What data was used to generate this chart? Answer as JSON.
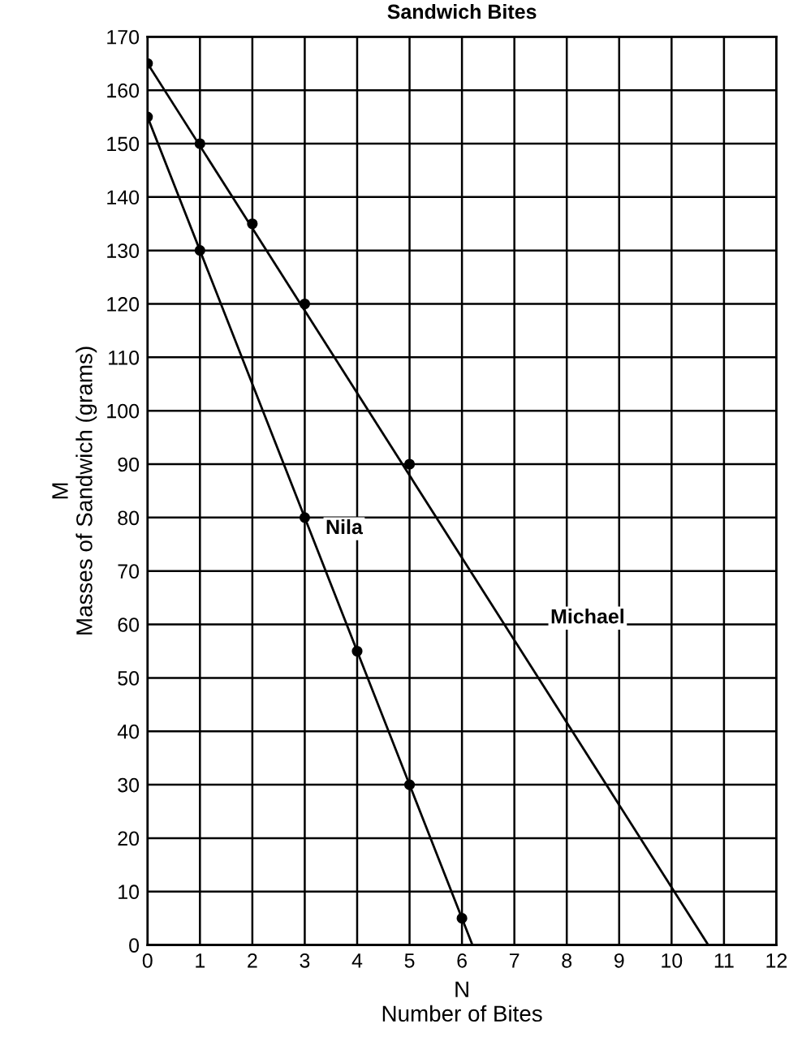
{
  "chart_data": {
    "type": "line",
    "title": "Sandwich Bites",
    "xlabel": "N\nNumber of Bites",
    "ylabel": "M\nMasses of Sandwich (grams)",
    "xlim": [
      0,
      12
    ],
    "xticks": [
      0,
      1,
      2,
      3,
      4,
      5,
      6,
      7,
      8,
      9,
      10,
      11,
      12
    ],
    "ylim": [
      0,
      170
    ],
    "yticks": [
      0,
      10,
      20,
      30,
      40,
      50,
      60,
      70,
      80,
      90,
      100,
      110,
      120,
      130,
      140,
      150,
      160,
      170
    ],
    "grid": true,
    "legend": false,
    "series": [
      {
        "name": "Michael",
        "marker": "none",
        "color": "#000000",
        "x": [
          0,
          10.7
        ],
        "values": [
          165,
          0
        ]
      },
      {
        "name": "Nila",
        "marker": "none",
        "color": "#000000",
        "x": [
          0,
          6.2
        ],
        "values": [
          155,
          0
        ]
      },
      {
        "type": "scatter",
        "marker": "circle",
        "color": "#000000",
        "x": [
          0,
          1,
          2,
          3,
          5
        ],
        "values": [
          165,
          150,
          135,
          120,
          90
        ]
      },
      {
        "type": "scatter",
        "marker": "circle",
        "color": "#000000",
        "x": [
          0,
          1,
          3,
          4,
          5,
          6
        ],
        "values": [
          155,
          130,
          80,
          55,
          30,
          5
        ]
      }
    ]
  }
}
